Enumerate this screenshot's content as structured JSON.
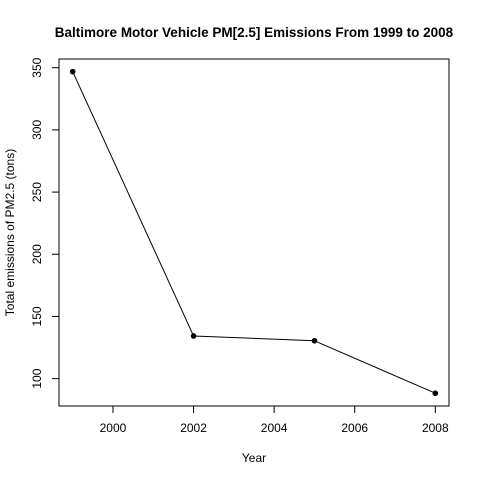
{
  "chart_data": {
    "type": "line",
    "title": "Baltimore Motor Vehicle PM[2.5] Emissions From 1999 to 2008",
    "xlabel": "Year",
    "ylabel": "Total emissions of PM2.5 (tons)",
    "x": [
      1999,
      2002,
      2005,
      2008
    ],
    "series": [
      {
        "values": [
          346.82,
          134.31,
          130.43,
          88.28
        ]
      }
    ],
    "xlim": [
      1998.66,
      2008.34
    ],
    "ylim": [
      78.0,
      357.0
    ],
    "xticks": [
      2000,
      2002,
      2004,
      2006,
      2008
    ],
    "yticks": [
      100,
      150,
      200,
      250,
      300,
      350
    ],
    "grid": false,
    "legend": "none",
    "markers": "filled-circle",
    "colors": {
      "line": "#000000",
      "marker": "#000000",
      "axis": "#000000"
    }
  }
}
